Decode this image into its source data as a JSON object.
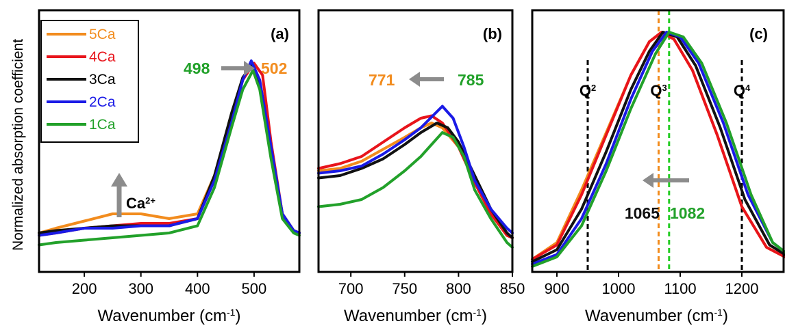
{
  "ylabel": "Normalized absorption coefficient",
  "colors": {
    "5Ca": "#f28c1e",
    "4Ca": "#e8141b",
    "3Ca": "#111111",
    "2Ca": "#1a1ae6",
    "1Ca": "#22a12a"
  },
  "legend": [
    "5Ca",
    "4Ca",
    "3Ca",
    "2Ca",
    "1Ca"
  ],
  "chart_data": [
    {
      "type": "line",
      "panel_label": "(a)",
      "xlabel_main": "Wavenumber (cm",
      "xlabel_sup": "-1",
      "xlabel_end": ")",
      "xlim": [
        120,
        580
      ],
      "ylim": [
        0,
        1
      ],
      "xticks": [
        200,
        300,
        400,
        500
      ],
      "annotations": {
        "left": "498",
        "right": "502",
        "ion": "Ca",
        "ion_sup": "2+"
      },
      "series": [
        {
          "name": "5Ca",
          "x": [
            120,
            150,
            200,
            250,
            300,
            350,
            400,
            430,
            460,
            480,
            495,
            510,
            530,
            550,
            570,
            580
          ],
          "y": [
            0.14,
            0.16,
            0.19,
            0.22,
            0.22,
            0.2,
            0.22,
            0.38,
            0.62,
            0.78,
            0.84,
            0.76,
            0.48,
            0.22,
            0.15,
            0.14
          ]
        },
        {
          "name": "4Ca",
          "x": [
            120,
            150,
            200,
            250,
            300,
            350,
            400,
            430,
            460,
            480,
            500,
            515,
            530,
            550,
            570,
            580
          ],
          "y": [
            0.13,
            0.14,
            0.16,
            0.17,
            0.18,
            0.18,
            0.2,
            0.37,
            0.62,
            0.78,
            0.85,
            0.8,
            0.52,
            0.22,
            0.15,
            0.14
          ]
        },
        {
          "name": "3Ca",
          "x": [
            120,
            150,
            200,
            250,
            300,
            350,
            400,
            430,
            460,
            480,
            495,
            510,
            530,
            550,
            570,
            580
          ],
          "y": [
            0.14,
            0.15,
            0.16,
            0.17,
            0.17,
            0.17,
            0.2,
            0.38,
            0.64,
            0.79,
            0.84,
            0.76,
            0.48,
            0.22,
            0.15,
            0.14
          ]
        },
        {
          "name": "2Ca",
          "x": [
            120,
            150,
            200,
            250,
            300,
            350,
            400,
            430,
            460,
            480,
            495,
            510,
            530,
            550,
            570,
            580
          ],
          "y": [
            0.13,
            0.14,
            0.16,
            0.16,
            0.17,
            0.17,
            0.2,
            0.36,
            0.6,
            0.78,
            0.86,
            0.78,
            0.5,
            0.22,
            0.15,
            0.14
          ]
        },
        {
          "name": "1Ca",
          "x": [
            120,
            150,
            200,
            250,
            300,
            350,
            400,
            430,
            460,
            480,
            498,
            510,
            530,
            550,
            570,
            580
          ],
          "y": [
            0.09,
            0.1,
            0.11,
            0.12,
            0.13,
            0.14,
            0.17,
            0.33,
            0.58,
            0.74,
            0.82,
            0.74,
            0.45,
            0.2,
            0.14,
            0.13
          ]
        }
      ]
    },
    {
      "type": "line",
      "panel_label": "(b)",
      "xlabel_main": "Wavenumber (cm",
      "xlabel_sup": "-1",
      "xlabel_end": ")",
      "xlim": [
        670,
        850
      ],
      "ylim": [
        0,
        1
      ],
      "xticks": [
        700,
        750,
        800,
        850
      ],
      "annotations": {
        "left": "771",
        "right": "785"
      },
      "series": [
        {
          "name": "5Ca",
          "x": [
            670,
            690,
            710,
            730,
            750,
            765,
            775,
            785,
            800,
            815,
            830,
            845,
            850
          ],
          "y": [
            0.4,
            0.41,
            0.44,
            0.49,
            0.54,
            0.58,
            0.6,
            0.58,
            0.5,
            0.36,
            0.22,
            0.13,
            0.12
          ]
        },
        {
          "name": "4Ca",
          "x": [
            670,
            690,
            710,
            730,
            750,
            765,
            775,
            785,
            800,
            815,
            830,
            845,
            850
          ],
          "y": [
            0.41,
            0.43,
            0.46,
            0.52,
            0.58,
            0.62,
            0.63,
            0.6,
            0.5,
            0.35,
            0.22,
            0.13,
            0.12
          ]
        },
        {
          "name": "3Ca",
          "x": [
            670,
            690,
            710,
            730,
            750,
            765,
            780,
            790,
            800,
            815,
            830,
            845,
            850
          ],
          "y": [
            0.37,
            0.38,
            0.41,
            0.45,
            0.51,
            0.56,
            0.6,
            0.58,
            0.52,
            0.38,
            0.24,
            0.14,
            0.12
          ]
        },
        {
          "name": "2Ca",
          "x": [
            670,
            690,
            710,
            730,
            750,
            765,
            785,
            795,
            805,
            815,
            830,
            845,
            850
          ],
          "y": [
            0.39,
            0.4,
            0.42,
            0.47,
            0.53,
            0.58,
            0.67,
            0.62,
            0.5,
            0.36,
            0.24,
            0.16,
            0.14
          ]
        },
        {
          "name": "1Ca",
          "x": [
            670,
            690,
            710,
            730,
            750,
            765,
            785,
            795,
            805,
            815,
            830,
            845,
            850
          ],
          "y": [
            0.25,
            0.26,
            0.28,
            0.33,
            0.4,
            0.46,
            0.56,
            0.54,
            0.46,
            0.32,
            0.2,
            0.1,
            0.08
          ]
        }
      ]
    },
    {
      "type": "line",
      "panel_label": "(c)",
      "xlabel_main": "Wavenumber (cm",
      "xlabel_sup": "-1",
      "xlabel_end": ")",
      "xlim": [
        860,
        1270
      ],
      "ylim": [
        0,
        1
      ],
      "xticks": [
        900,
        1000,
        1100,
        1200
      ],
      "vlines": [
        {
          "label": "Q",
          "sup": "2",
          "x": 950,
          "color": "#000000"
        },
        {
          "label": "Q",
          "sup": "3",
          "x": 1065,
          "color": "#f28c1e"
        },
        {
          "label": "",
          "sup": "",
          "x": 1082,
          "color": "#22cc22"
        },
        {
          "label": "Q",
          "sup": "4",
          "x": 1200,
          "color": "#000000"
        }
      ],
      "annotations": {
        "left": "1065",
        "right": "1082"
      },
      "series": [
        {
          "name": "5Ca",
          "x": [
            860,
            900,
            940,
            980,
            1020,
            1050,
            1070,
            1090,
            1120,
            1160,
            1200,
            1240,
            1270
          ],
          "y": [
            0.03,
            0.1,
            0.32,
            0.56,
            0.8,
            0.94,
            0.98,
            0.95,
            0.82,
            0.55,
            0.25,
            0.08,
            0.04
          ]
        },
        {
          "name": "4Ca",
          "x": [
            860,
            900,
            940,
            980,
            1020,
            1050,
            1070,
            1090,
            1120,
            1160,
            1200,
            1240,
            1270
          ],
          "y": [
            0.03,
            0.09,
            0.3,
            0.55,
            0.8,
            0.94,
            0.98,
            0.95,
            0.82,
            0.55,
            0.25,
            0.08,
            0.04
          ]
        },
        {
          "name": "3Ca",
          "x": [
            860,
            900,
            940,
            980,
            1020,
            1050,
            1072,
            1095,
            1125,
            1165,
            1205,
            1245,
            1270
          ],
          "y": [
            0.02,
            0.07,
            0.24,
            0.48,
            0.74,
            0.9,
            0.98,
            0.96,
            0.84,
            0.58,
            0.28,
            0.09,
            0.05
          ]
        },
        {
          "name": "2Ca",
          "x": [
            860,
            900,
            940,
            980,
            1020,
            1055,
            1078,
            1100,
            1130,
            1170,
            1210,
            1250,
            1270
          ],
          "y": [
            0.01,
            0.05,
            0.2,
            0.43,
            0.7,
            0.9,
            0.98,
            0.96,
            0.85,
            0.6,
            0.3,
            0.1,
            0.06
          ]
        },
        {
          "name": "1Ca",
          "x": [
            860,
            900,
            940,
            980,
            1020,
            1060,
            1082,
            1105,
            1135,
            1175,
            1215,
            1250,
            1270
          ],
          "y": [
            0.0,
            0.04,
            0.17,
            0.4,
            0.66,
            0.89,
            0.98,
            0.96,
            0.85,
            0.6,
            0.3,
            0.1,
            0.06
          ]
        }
      ]
    }
  ]
}
